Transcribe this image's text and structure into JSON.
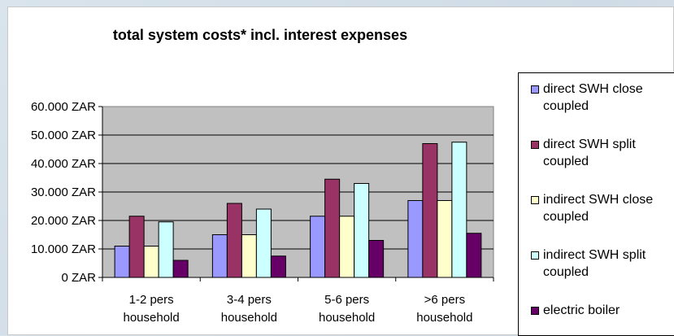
{
  "chart_data": {
    "type": "bar",
    "title": "total system costs* incl. interest expenses",
    "categories": [
      [
        "1-2 pers",
        "household"
      ],
      [
        "3-4 pers",
        "household"
      ],
      [
        "5-6 pers",
        "household"
      ],
      [
        ">6 pers",
        "household"
      ]
    ],
    "ylim": [
      0,
      60000
    ],
    "yticks": [
      "0 ZAR",
      "10.000 ZAR",
      "20.000 ZAR",
      "30.000 ZAR",
      "40.000 ZAR",
      "50.000 ZAR",
      "60.000 ZAR"
    ],
    "grid": true,
    "legend_position": "right",
    "series": [
      {
        "name": "direct SWH close coupled",
        "label_lines": [
          "direct SWH close",
          "coupled"
        ],
        "color": "#9999ff",
        "values": [
          11000,
          15000,
          21500,
          27000
        ]
      },
      {
        "name": "direct SWH split coupled",
        "label_lines": [
          "direct SWH split",
          "coupled"
        ],
        "color": "#993366",
        "values": [
          21500,
          26000,
          34500,
          47000
        ]
      },
      {
        "name": "indirect SWH close coupled",
        "label_lines": [
          "indirect SWH close",
          "coupled"
        ],
        "color": "#ffffcc",
        "values": [
          11000,
          15000,
          21500,
          27000
        ]
      },
      {
        "name": "indirect SWH split coupled",
        "label_lines": [
          "indirect SWH split",
          "coupled"
        ],
        "color": "#ccffff",
        "values": [
          19500,
          24000,
          33000,
          47500
        ]
      },
      {
        "name": "electric boiler",
        "label_lines": [
          "electric boiler"
        ],
        "color": "#660066",
        "values": [
          6000,
          7500,
          13000,
          15500
        ]
      }
    ]
  }
}
